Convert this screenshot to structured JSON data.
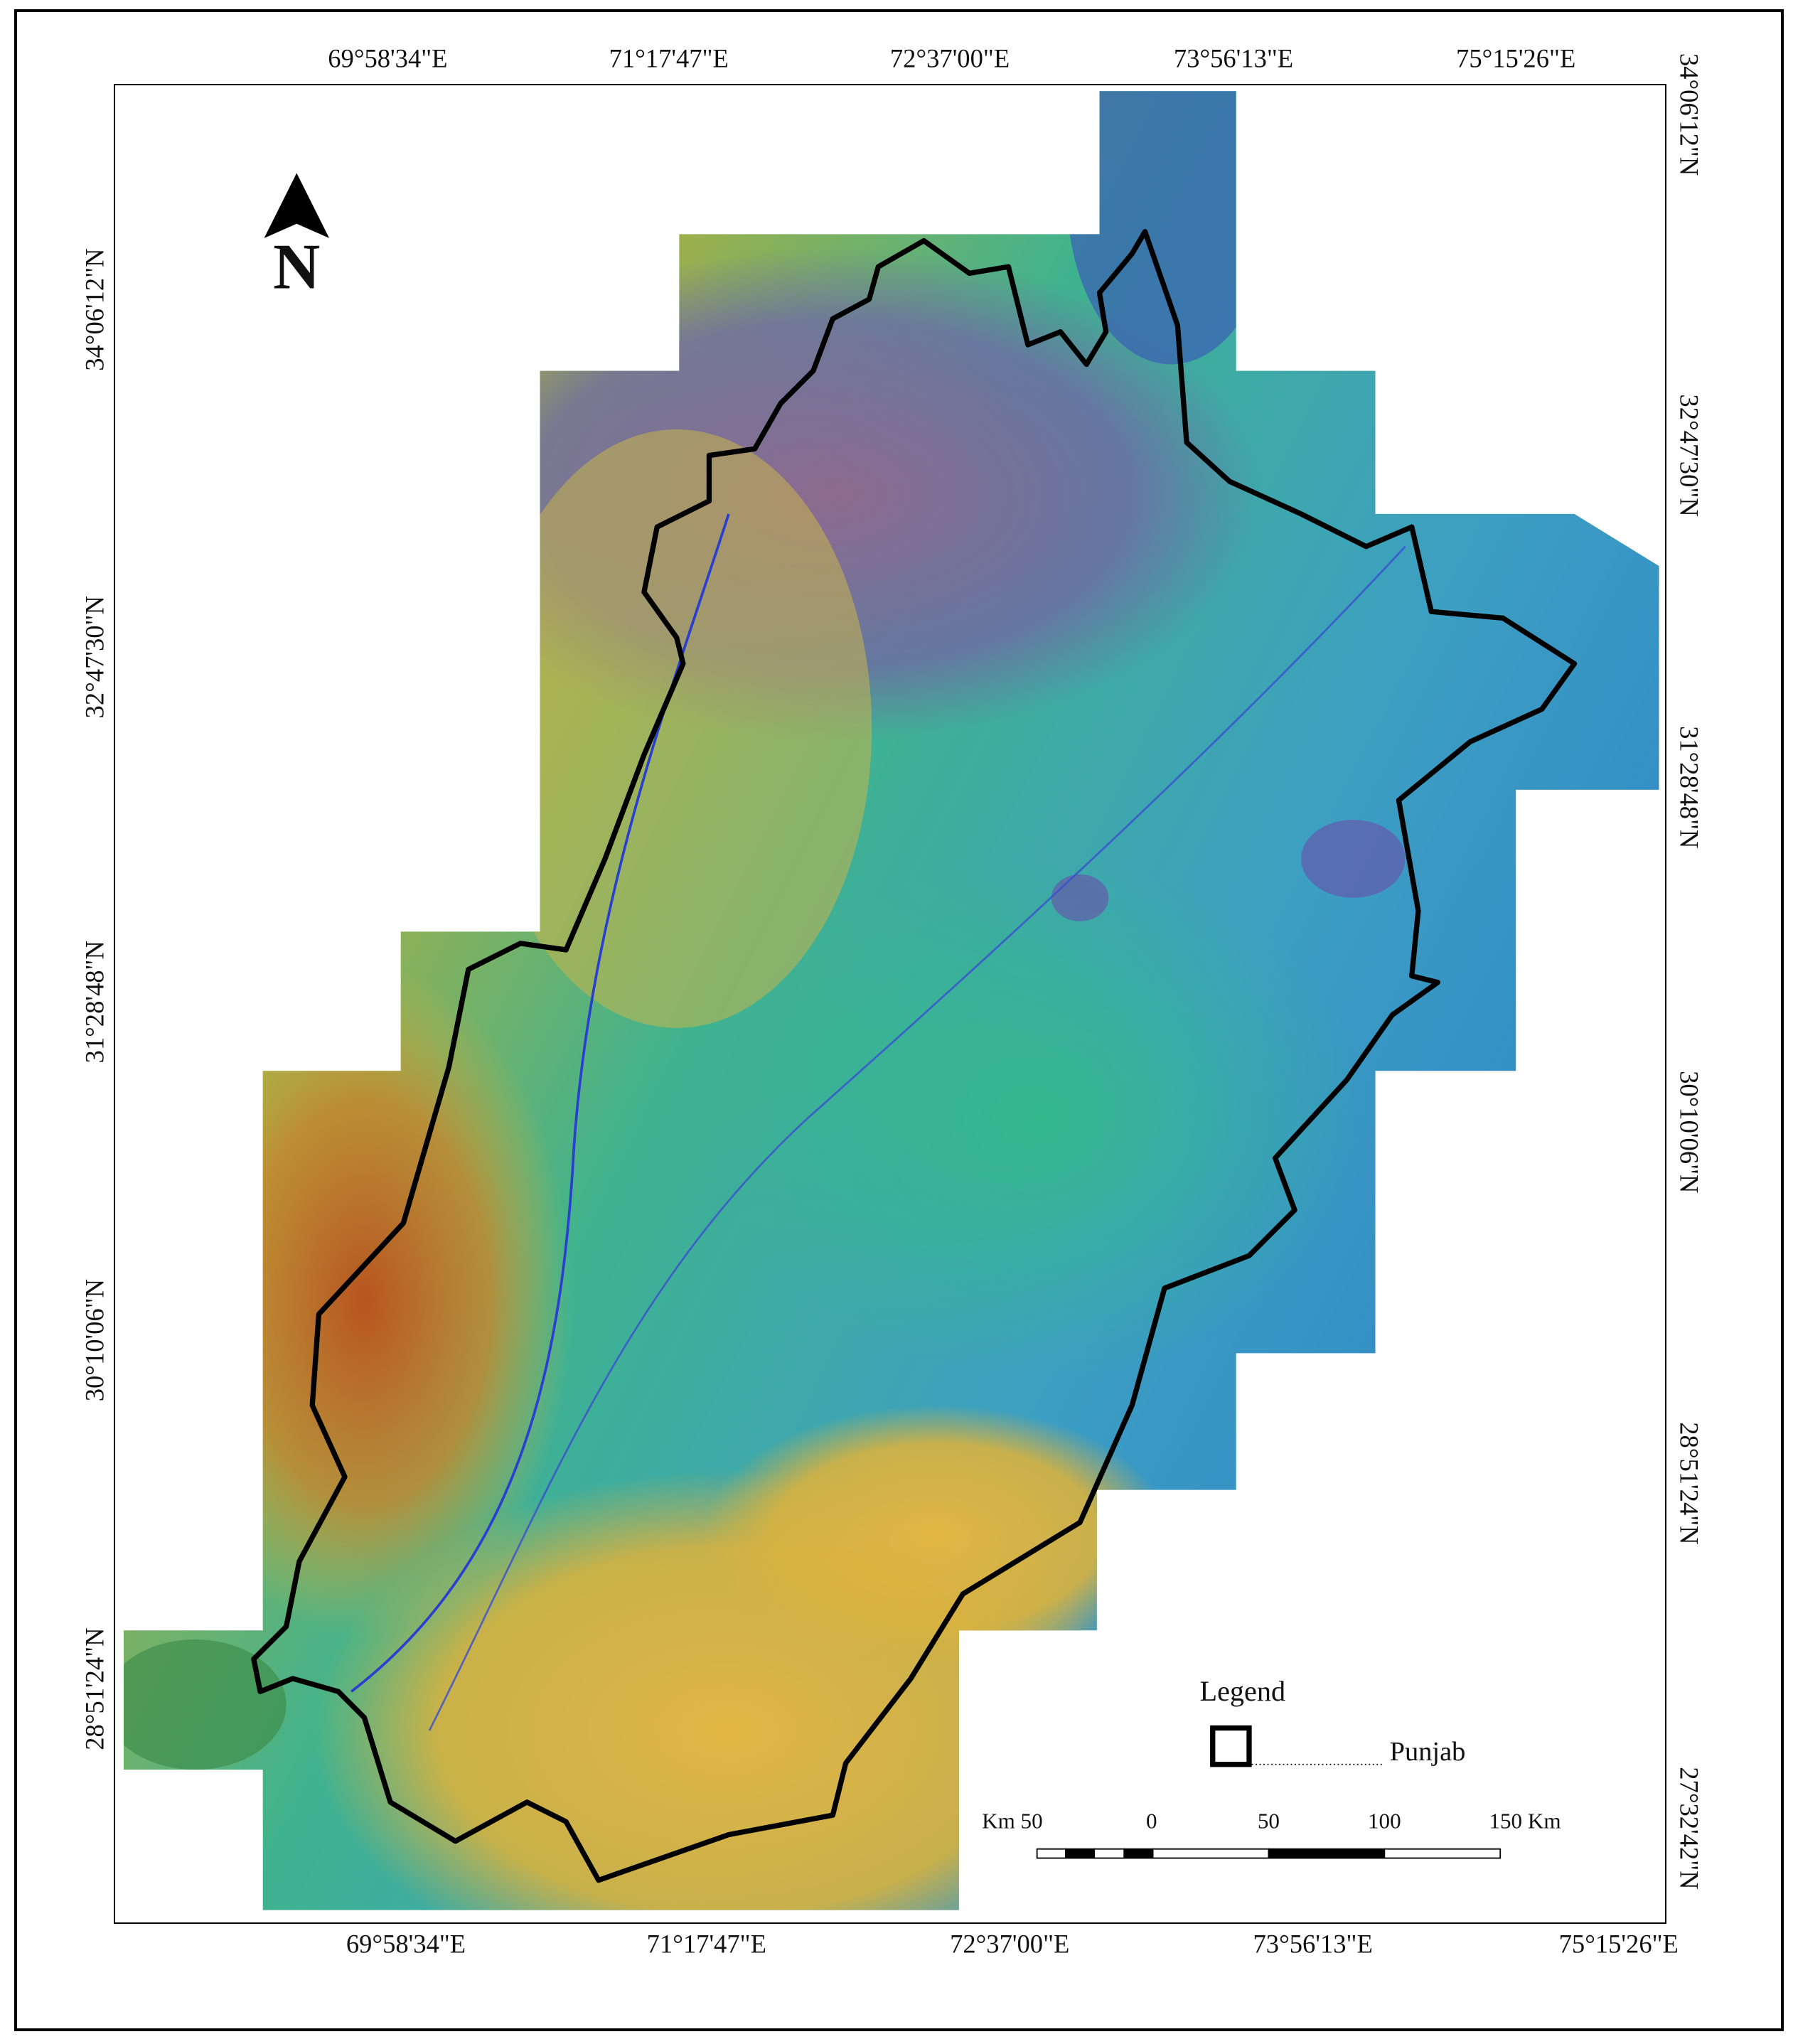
{
  "longitude_labels_top": [
    "69°58'34\"E",
    "71°17'47\"E",
    "72°37'00\"E",
    "73°56'13\"E",
    "75°15'26\"E"
  ],
  "longitude_labels_bottom": [
    "69°58'34\"E",
    "71°17'47\"E",
    "72°37'00\"E",
    "73°56'13\"E",
    "75°15'26\"E"
  ],
  "latitude_labels_left": [
    "34°06'12\"N",
    "32°47'30\"N",
    "31°28'48\"N",
    "30°10'06\"N",
    "28°51'24\"N"
  ],
  "latitude_labels_right": [
    "34°06'12\"N",
    "32°47'30\"N",
    "31°28'48\"N",
    "30°10'06\"N",
    "28°51'24\"N",
    "27°32'42\"N"
  ],
  "north_arrow": {
    "label": "N"
  },
  "legend": {
    "title": "Legend",
    "items": [
      {
        "label": "Punjab"
      }
    ]
  },
  "scale_bar": {
    "labels": [
      "Km 50",
      "0",
      "50",
      "100",
      "150 Km"
    ]
  }
}
